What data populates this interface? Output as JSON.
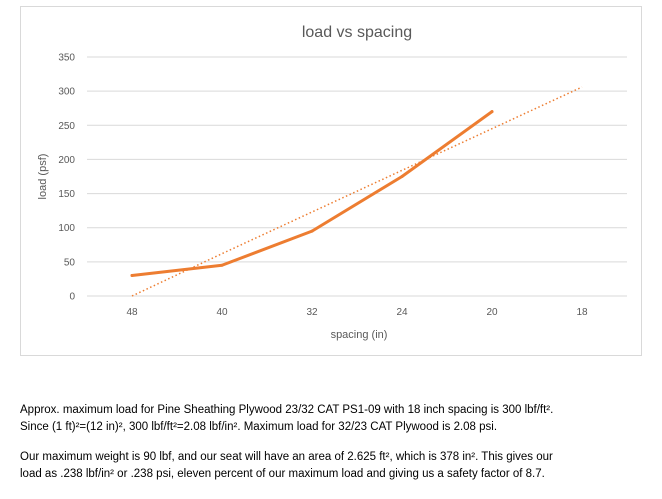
{
  "chart_data": {
    "type": "line",
    "title": "load vs spacing",
    "xlabel": "spacing (in)",
    "ylabel": "load (psf)",
    "categories": [
      "48",
      "40",
      "32",
      "24",
      "20",
      "18"
    ],
    "ylim": [
      0,
      350
    ],
    "yticks": [
      0,
      50,
      100,
      150,
      200,
      250,
      300,
      350
    ],
    "grid": true,
    "legend": "none",
    "series": [
      {
        "values": [
          30,
          45,
          95,
          175,
          270,
          null
        ],
        "color": "#ED7D31",
        "style": "solid"
      }
    ],
    "trendline": {
      "type": "linear",
      "values": [
        0,
        62,
        123,
        184,
        245,
        306
      ],
      "color": "#ED7D31",
      "style": "dotted"
    }
  },
  "paragraphs": {
    "p1_line1": "Approx. maximum load for Pine Sheathing Plywood 23/32 CAT PS1-09 with 18 inch spacing is 300 lbf/ft².",
    "p1_line2": "Since (1 ft)²=(12 in)², 300 lbf/ft²=2.08 lbf/in². Maximum load for 32/23 CAT Plywood is 2.08 psi.",
    "p2_line1": "Our maximum weight is 90 lbf, and our seat will have an area of 2.625 ft², which is 378 in². This gives our",
    "p2_line2": "load as .238 lbf/in² or .238 psi, eleven percent of our maximum load and giving us a safety factor of 8.7."
  }
}
